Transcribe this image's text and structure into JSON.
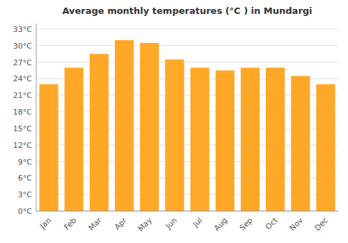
{
  "chart_data": {
    "type": "bar",
    "title": "Average monthly temperatures (°C ) in Mundargi",
    "categories": [
      "Jan",
      "Feb",
      "Mar",
      "Apr",
      "May",
      "Jun",
      "Jul",
      "Aug",
      "Sep",
      "Oct",
      "Nov",
      "Dec"
    ],
    "values": [
      23.0,
      26.0,
      28.5,
      31.0,
      30.5,
      27.5,
      26.0,
      25.5,
      26.0,
      26.0,
      24.5,
      23.0
    ],
    "color": "#FFA726",
    "ylim": [
      0,
      34
    ],
    "yticks": [
      {
        "value": 0,
        "label": "0°C"
      },
      {
        "value": 3,
        "label": "3°C"
      },
      {
        "value": 6,
        "label": "6°C"
      },
      {
        "value": 9,
        "label": "9°C"
      },
      {
        "value": 12,
        "label": "12°C"
      },
      {
        "value": 15,
        "label": "15°C"
      },
      {
        "value": 18,
        "label": "18°C"
      },
      {
        "value": 21,
        "label": "21°C"
      },
      {
        "value": 24,
        "label": "24°C"
      },
      {
        "value": 27,
        "label": "27°C"
      },
      {
        "value": 30,
        "label": "30°C"
      },
      {
        "value": 33,
        "label": "33°C"
      }
    ],
    "grid": true
  }
}
